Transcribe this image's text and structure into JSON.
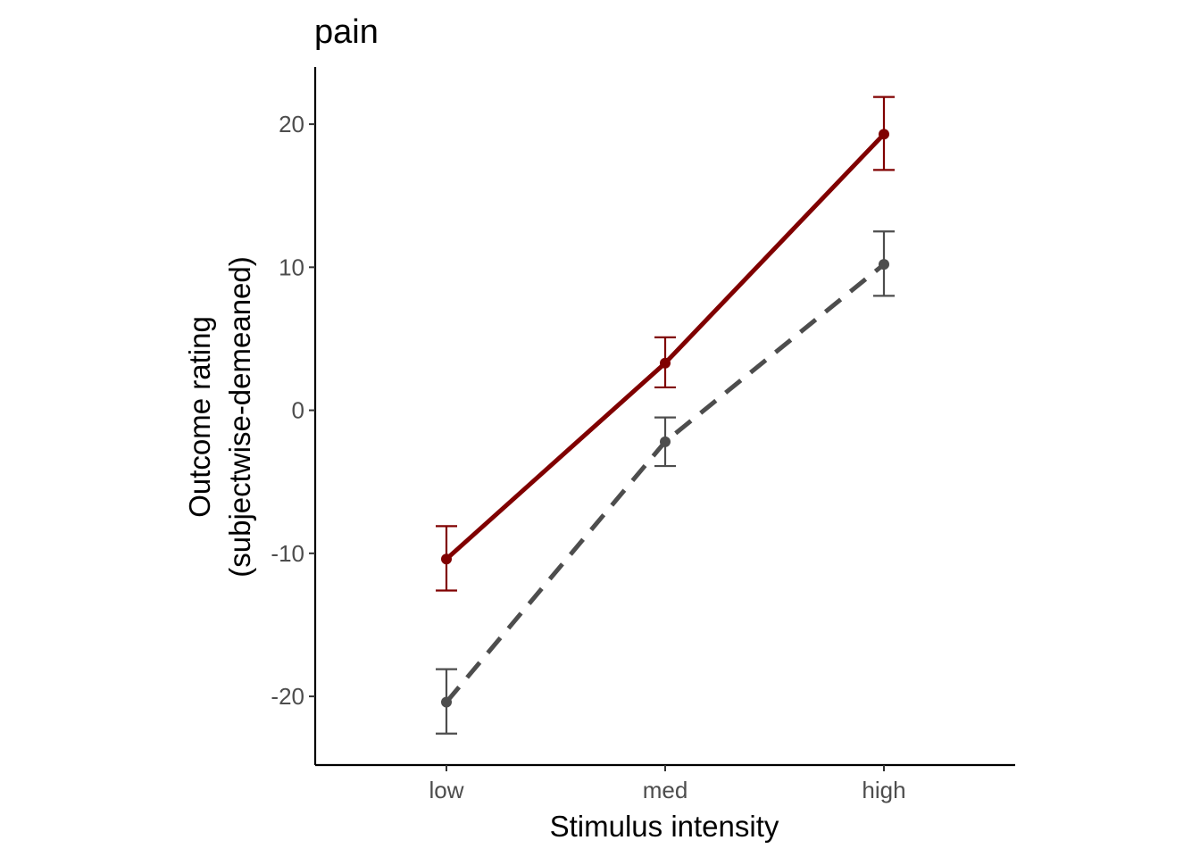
{
  "chart_data": {
    "type": "line",
    "title": "pain",
    "xlabel": "Stimulus intensity",
    "ylabel_lines": [
      "Outcome rating",
      "(subjectwise-demeaned)"
    ],
    "categories": [
      "low",
      "med",
      "high"
    ],
    "yticks": [
      -20,
      -10,
      0,
      10,
      20
    ],
    "ylim": [
      -24.8,
      24
    ],
    "grid": false,
    "legend": "none",
    "series": [
      {
        "color": "#800000",
        "dash": "solid",
        "values": [
          -10.4,
          3.3,
          19.3
        ],
        "err_low": [
          -12.6,
          1.6,
          16.8
        ],
        "err_high": [
          -8.1,
          5.1,
          21.9
        ]
      },
      {
        "color": "#4d4d4d",
        "dash": "dashed",
        "values": [
          -20.4,
          -2.2,
          10.2
        ],
        "err_low": [
          -22.6,
          -3.9,
          8.0
        ],
        "err_high": [
          -18.1,
          -0.5,
          12.5
        ]
      }
    ]
  }
}
